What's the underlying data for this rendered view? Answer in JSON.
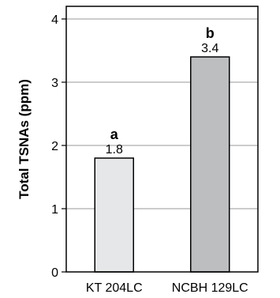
{
  "chart_data": {
    "type": "bar",
    "title": "",
    "xlabel": "",
    "ylabel": "Total TSNAs (ppm)",
    "categories": [
      "KT 204LC",
      "NCBH 129LC"
    ],
    "values": [
      1.8,
      3.4
    ],
    "value_labels": [
      "1.8",
      "3.4"
    ],
    "significance_letters": [
      "a",
      "b"
    ],
    "bar_colors": [
      "#e6e7e8",
      "#bcbec0"
    ],
    "ylim": [
      0,
      4.2
    ],
    "yticks": [
      0,
      1,
      2,
      3,
      4
    ],
    "ytick_labels": [
      "0",
      "1",
      "2",
      "3",
      "4"
    ],
    "grid": "horizontal"
  }
}
